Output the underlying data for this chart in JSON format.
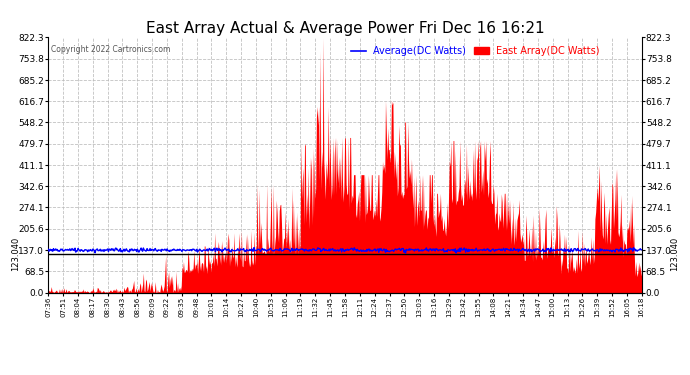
{
  "title": "East Array Actual & Average Power Fri Dec 16 16:21",
  "copyright": "Copyright 2022 Cartronics.com",
  "legend_avg": "Average(DC Watts)",
  "legend_east": "East Array(DC Watts)",
  "legend_avg_color": "blue",
  "legend_east_color": "red",
  "hline_value": 123.04,
  "hline_label": "123.040",
  "y_max": 822.3,
  "y_min": 0.0,
  "yticks": [
    0.0,
    68.5,
    137.0,
    205.6,
    274.1,
    342.6,
    411.1,
    479.7,
    548.2,
    616.7,
    685.2,
    753.8,
    822.3
  ],
  "background_color": "#ffffff",
  "grid_color": "#bbbbbb",
  "title_fontsize": 11,
  "avg_line_value": 137.0,
  "x_labels": [
    "07:36",
    "07:51",
    "08:04",
    "08:17",
    "08:30",
    "08:43",
    "08:56",
    "09:09",
    "09:22",
    "09:35",
    "09:48",
    "10:01",
    "10:14",
    "10:27",
    "10:40",
    "10:53",
    "11:06",
    "11:19",
    "11:32",
    "11:45",
    "11:58",
    "12:11",
    "12:24",
    "12:37",
    "12:50",
    "13:03",
    "13:16",
    "13:29",
    "13:42",
    "13:55",
    "14:08",
    "14:21",
    "14:34",
    "14:47",
    "15:00",
    "15:13",
    "15:26",
    "15:39",
    "15:52",
    "16:05",
    "16:18"
  ]
}
